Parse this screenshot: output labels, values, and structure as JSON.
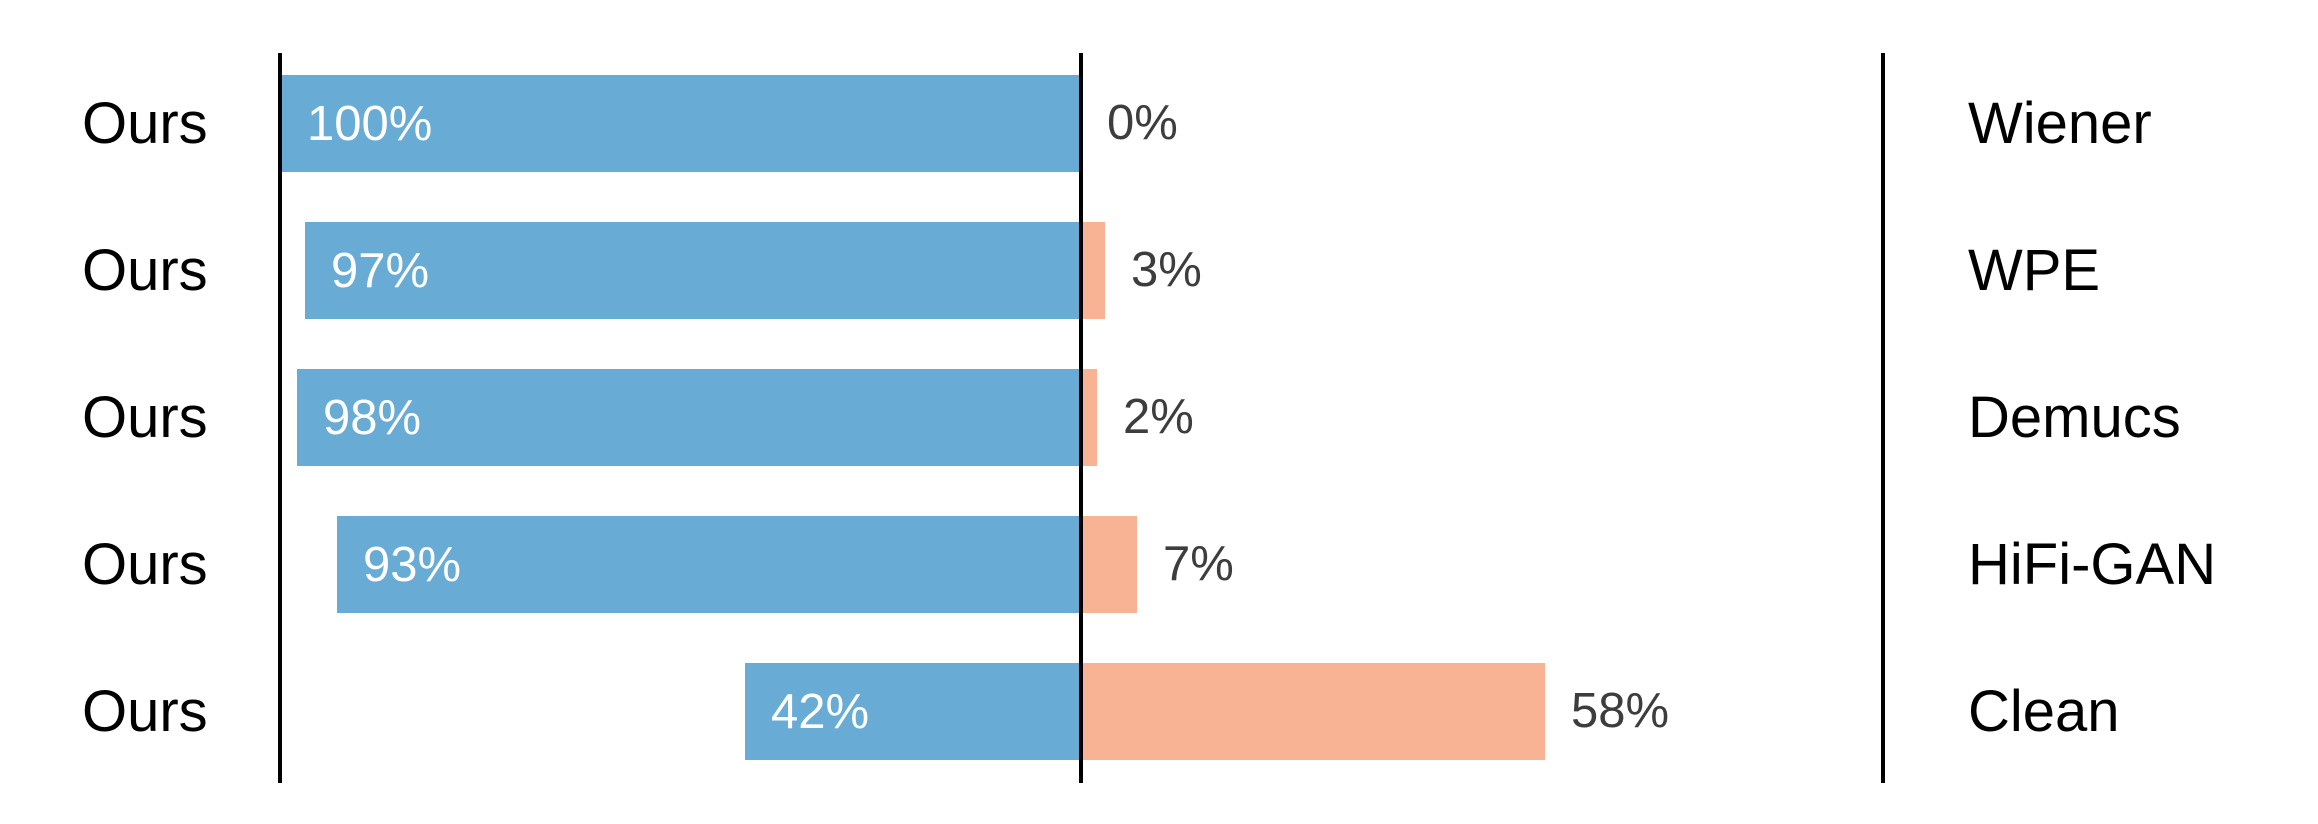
{
  "chart_data": {
    "type": "bar",
    "variant": "diverging_horizontal_pairwise_preference",
    "title": "",
    "left_series_label": "Ours",
    "categories": [
      "Wiener",
      "WPE",
      "Demucs",
      "HiFi-GAN",
      "Clean"
    ],
    "rows": [
      {
        "left_label": "Ours",
        "ours_pct": 100,
        "ours_text": "100%",
        "other_pct": 0,
        "other_text": "0%",
        "method": "Wiener"
      },
      {
        "left_label": "Ours",
        "ours_pct": 97,
        "ours_text": "97%",
        "other_pct": 3,
        "other_text": "3%",
        "method": "WPE"
      },
      {
        "left_label": "Ours",
        "ours_pct": 98,
        "ours_text": "98%",
        "other_pct": 2,
        "other_text": "2%",
        "method": "Demucs"
      },
      {
        "left_label": "Ours",
        "ours_pct": 93,
        "ours_text": "93%",
        "other_pct": 7,
        "other_text": "7%",
        "method": "HiFi-GAN"
      },
      {
        "left_label": "Ours",
        "ours_pct": 42,
        "ours_text": "42%",
        "other_pct": 58,
        "other_text": "58%",
        "method": "Clean"
      }
    ],
    "series": [
      {
        "side": "left",
        "values": [
          100,
          97,
          98,
          93,
          42
        ]
      },
      {
        "side": "right",
        "values": [
          0,
          3,
          2,
          7,
          58
        ]
      }
    ],
    "axis": {
      "unit": "percent",
      "total_per_row": 100,
      "gridlines": false,
      "legend": "none"
    },
    "colors": {
      "ours_bar": "#68acd5",
      "other_bar": "#f8b294",
      "value_text_on_bar": "#ffffff",
      "value_text_outside": "#3d3d3d",
      "label_text": "#000000",
      "axis_line": "#000000",
      "background": "#ffffff"
    }
  }
}
